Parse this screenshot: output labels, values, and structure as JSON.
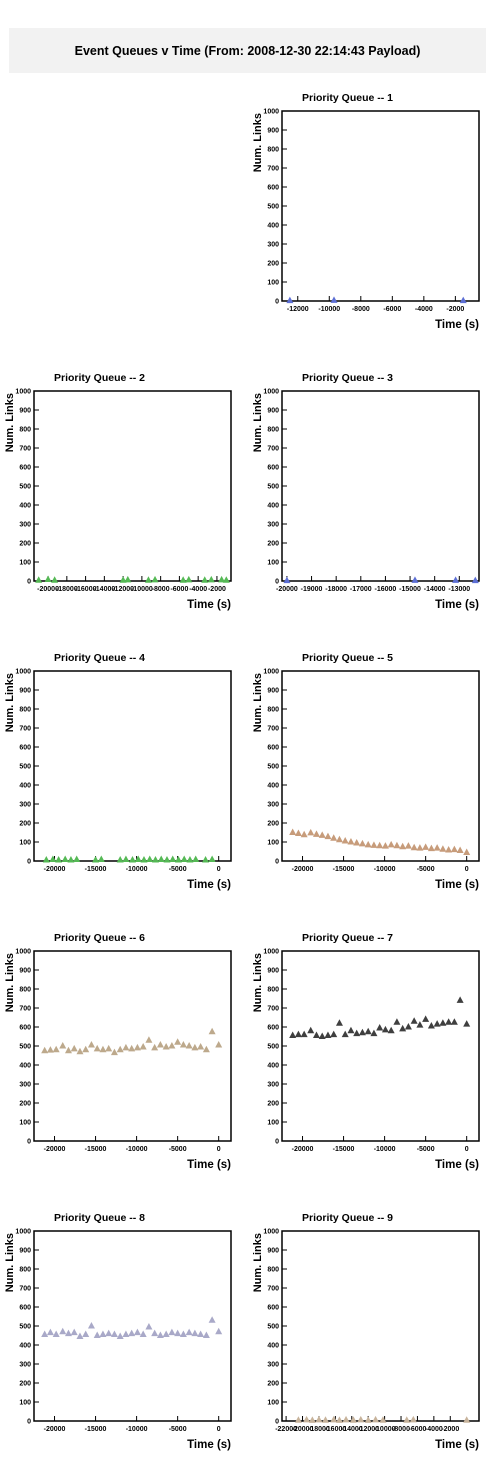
{
  "page": {
    "title": "Event Queues v Time (From: 2008-12-30 22:14:43 Payload)"
  },
  "chart_data": [
    {
      "type": "scatter",
      "title": "Priority Queue -- 1",
      "xlabel": "Time (s)",
      "ylabel": "Num. Links",
      "xlim": [
        -13000,
        -500
      ],
      "ylim": [
        0,
        1000
      ],
      "xticks": [
        -12000,
        -10000,
        -8000,
        -6000,
        -4000,
        -2000
      ],
      "xtick_labels": [
        "-12000",
        "-10000",
        "-8000",
        "-6000",
        "-4000",
        "-2000"
      ],
      "yticks": [
        0,
        100,
        200,
        300,
        400,
        500,
        600,
        700,
        800,
        900,
        1000
      ],
      "color": "#5d6fd4",
      "x": [
        -12500,
        -9700,
        -1500
      ],
      "y": [
        2,
        3,
        2
      ]
    },
    {
      "type": "scatter",
      "title": "Priority Queue -- 2",
      "xlabel": "Time (s)",
      "ylabel": "Num. Links",
      "xlim": [
        -21500,
        -500
      ],
      "ylim": [
        0,
        1000
      ],
      "xticks": [
        -20000,
        -18000,
        -16000,
        -14000,
        -12000,
        -10000,
        -8000,
        -6000,
        -4000,
        -2000
      ],
      "xtick_labels": [
        "-20000",
        "-18000",
        "-16000",
        "-14000",
        "-12000",
        "-10000",
        "-8000",
        "-6000",
        "-4000",
        "-2000"
      ],
      "yticks": [
        0,
        100,
        200,
        300,
        400,
        500,
        600,
        700,
        800,
        900,
        1000
      ],
      "color": "#55b955",
      "x": [
        -21000,
        -20000,
        -19300,
        -12000,
        -11500,
        -9300,
        -8600,
        -5600,
        -5000,
        -3300,
        -2600,
        -1500,
        -1000
      ],
      "y": [
        4,
        8,
        4,
        4,
        6,
        4,
        6,
        4,
        6,
        4,
        6,
        6,
        4
      ]
    },
    {
      "type": "scatter",
      "title": "Priority Queue -- 3",
      "xlabel": "Time (s)",
      "ylabel": "Num. Links",
      "xlim": [
        -20200,
        -12200
      ],
      "ylim": [
        0,
        1000
      ],
      "xticks": [
        -20000,
        -19000,
        -18000,
        -17000,
        -16000,
        -15000,
        -14000,
        -13000
      ],
      "xtick_labels": [
        "-20000",
        "-19000",
        "-18000",
        "-17000",
        "-16000",
        "-15000",
        "-14000",
        "-13000"
      ],
      "yticks": [
        0,
        100,
        200,
        300,
        400,
        500,
        600,
        700,
        800,
        900,
        1000
      ],
      "color": "#5d6fd4",
      "x": [
        -20000,
        -14800,
        -13150,
        -12350
      ],
      "y": [
        2,
        3,
        3,
        2
      ]
    },
    {
      "type": "scatter",
      "title": "Priority Queue -- 4",
      "xlabel": "Time (s)",
      "ylabel": "Num. Links",
      "xlim": [
        -22500,
        1500
      ],
      "ylim": [
        0,
        1000
      ],
      "xticks": [
        -20000,
        -15000,
        -10000,
        -5000,
        0
      ],
      "xtick_labels": [
        "-20000",
        "-15000",
        "-10000",
        "-5000",
        "0"
      ],
      "yticks": [
        0,
        100,
        200,
        300,
        400,
        500,
        600,
        700,
        800,
        900,
        1000
      ],
      "color": "#55b955",
      "x": [
        -21000,
        -20200,
        -19500,
        -18700,
        -18000,
        -17300,
        -15000,
        -14300,
        -12000,
        -11300,
        -10500,
        -9800,
        -9100,
        -8400,
        -7700,
        -7000,
        -6300,
        -5600,
        -4900,
        -4200,
        -3500,
        -2800,
        -1600,
        -800
      ],
      "y": [
        5,
        8,
        5,
        8,
        5,
        8,
        5,
        8,
        5,
        8,
        5,
        8,
        5,
        8,
        5,
        8,
        5,
        8,
        5,
        8,
        5,
        8,
        5,
        8
      ]
    },
    {
      "type": "scatter",
      "title": "Priority Queue -- 5",
      "xlabel": "Time (s)",
      "ylabel": "Num. Links",
      "xlim": [
        -22500,
        1500
      ],
      "ylim": [
        0,
        1000
      ],
      "xticks": [
        -20000,
        -15000,
        -10000,
        -5000,
        0
      ],
      "xtick_labels": [
        "-20000",
        "-15000",
        "-10000",
        "-5000",
        "0"
      ],
      "yticks": [
        0,
        100,
        200,
        300,
        400,
        500,
        600,
        700,
        800,
        900,
        1000
      ],
      "color": "#c79c7b",
      "x": [
        -21200,
        -20500,
        -19800,
        -19000,
        -18300,
        -17600,
        -16900,
        -16200,
        -15500,
        -14800,
        -14100,
        -13400,
        -12700,
        -12000,
        -11300,
        -10600,
        -9900,
        -9200,
        -8500,
        -7800,
        -7100,
        -6400,
        -5700,
        -5000,
        -4300,
        -3600,
        -2900,
        -2200,
        -1500,
        -800,
        0
      ],
      "y": [
        150,
        145,
        138,
        148,
        140,
        135,
        128,
        120,
        112,
        105,
        100,
        95,
        90,
        85,
        82,
        80,
        78,
        85,
        80,
        75,
        78,
        70,
        68,
        72,
        65,
        68,
        62,
        58,
        60,
        55,
        45
      ]
    },
    {
      "type": "scatter",
      "title": "Priority Queue -- 6",
      "xlabel": "Time (s)",
      "ylabel": "Num. Links",
      "xlim": [
        -22500,
        1500
      ],
      "ylim": [
        0,
        1000
      ],
      "xticks": [
        -20000,
        -15000,
        -10000,
        -5000,
        0
      ],
      "xtick_labels": [
        "-20000",
        "-15000",
        "-10000",
        "-5000",
        "0"
      ],
      "yticks": [
        0,
        100,
        200,
        300,
        400,
        500,
        600,
        700,
        800,
        900,
        1000
      ],
      "color": "#bda98c",
      "x": [
        -21200,
        -20500,
        -19800,
        -19000,
        -18300,
        -17600,
        -16900,
        -16200,
        -15500,
        -14800,
        -14100,
        -13400,
        -12700,
        -12000,
        -11300,
        -10600,
        -9900,
        -9200,
        -8500,
        -7800,
        -7100,
        -6400,
        -5700,
        -5000,
        -4300,
        -3600,
        -2900,
        -2200,
        -1500,
        -800,
        0
      ],
      "y": [
        475,
        478,
        480,
        500,
        475,
        485,
        470,
        480,
        505,
        485,
        480,
        485,
        465,
        480,
        490,
        485,
        490,
        495,
        530,
        490,
        505,
        495,
        500,
        520,
        505,
        500,
        490,
        495,
        480,
        575,
        505
      ]
    },
    {
      "type": "scatter",
      "title": "Priority Queue -- 7",
      "xlabel": "Time (s)",
      "ylabel": "Num. Links",
      "xlim": [
        -22500,
        1500
      ],
      "ylim": [
        0,
        1000
      ],
      "xticks": [
        -20000,
        -15000,
        -10000,
        -5000,
        0
      ],
      "xtick_labels": [
        "-20000",
        "-15000",
        "-10000",
        "-5000",
        "0"
      ],
      "yticks": [
        0,
        100,
        200,
        300,
        400,
        500,
        600,
        700,
        800,
        900,
        1000
      ],
      "color": "#3f3f3f",
      "x": [
        -21200,
        -20500,
        -19800,
        -19000,
        -18300,
        -17600,
        -16900,
        -16200,
        -15500,
        -14800,
        -14100,
        -13400,
        -12700,
        -12000,
        -11300,
        -10600,
        -9900,
        -9200,
        -8500,
        -7800,
        -7100,
        -6400,
        -5700,
        -5000,
        -4300,
        -3600,
        -2900,
        -2200,
        -1500,
        -800,
        0
      ],
      "y": [
        555,
        560,
        560,
        580,
        555,
        550,
        555,
        560,
        620,
        560,
        580,
        565,
        570,
        575,
        565,
        595,
        585,
        580,
        625,
        590,
        600,
        630,
        610,
        640,
        605,
        615,
        620,
        625,
        625,
        740,
        615
      ]
    },
    {
      "type": "scatter",
      "title": "Priority Queue -- 8",
      "xlabel": "Time (s)",
      "ylabel": "Num. Links",
      "xlim": [
        -22500,
        1500
      ],
      "ylim": [
        0,
        1000
      ],
      "xticks": [
        -20000,
        -15000,
        -10000,
        -5000,
        0
      ],
      "xtick_labels": [
        "-20000",
        "-15000",
        "-10000",
        "-5000",
        "0"
      ],
      "yticks": [
        0,
        100,
        200,
        300,
        400,
        500,
        600,
        700,
        800,
        900,
        1000
      ],
      "color": "#a9a9c8",
      "x": [
        -21200,
        -20500,
        -19800,
        -19000,
        -18300,
        -17600,
        -16900,
        -16200,
        -15500,
        -14800,
        -14100,
        -13400,
        -12700,
        -12000,
        -11300,
        -10600,
        -9900,
        -9200,
        -8500,
        -7800,
        -7100,
        -6400,
        -5700,
        -5000,
        -4300,
        -3600,
        -2900,
        -2200,
        -1500,
        -800,
        0
      ],
      "y": [
        455,
        465,
        455,
        470,
        460,
        465,
        445,
        455,
        500,
        450,
        455,
        460,
        455,
        445,
        455,
        460,
        465,
        455,
        495,
        460,
        450,
        455,
        465,
        460,
        455,
        465,
        460,
        455,
        450,
        530,
        470
      ]
    },
    {
      "type": "scatter",
      "title": "Priority Queue -- 9",
      "xlabel": "Time (s)",
      "ylabel": "Num. Links",
      "xlim": [
        -22500,
        1500
      ],
      "ylim": [
        0,
        1000
      ],
      "xticks": [
        -22000,
        -20000,
        -18000,
        -16000,
        -14000,
        -12000,
        -10000,
        -8000,
        -6000,
        -4000,
        -2000
      ],
      "xtick_labels": [
        "-22000",
        "-20000",
        "-18000",
        "-16000",
        "-14000",
        "-12000",
        "-10000",
        "-8000",
        "-6000",
        "-4000",
        "-2000"
      ],
      "yticks": [
        0,
        100,
        200,
        300,
        400,
        500,
        600,
        700,
        800,
        900,
        1000
      ],
      "color": "#c7b39b",
      "x": [
        -20500,
        -19500,
        -18800,
        -18000,
        -17200,
        -16200,
        -15500,
        -14700,
        -13800,
        -12900,
        -12000,
        -11100,
        -10200,
        -7300,
        -6500,
        0
      ],
      "y": [
        4,
        6,
        3,
        6,
        4,
        6,
        3,
        6,
        4,
        6,
        3,
        6,
        4,
        4,
        6,
        4
      ]
    }
  ]
}
